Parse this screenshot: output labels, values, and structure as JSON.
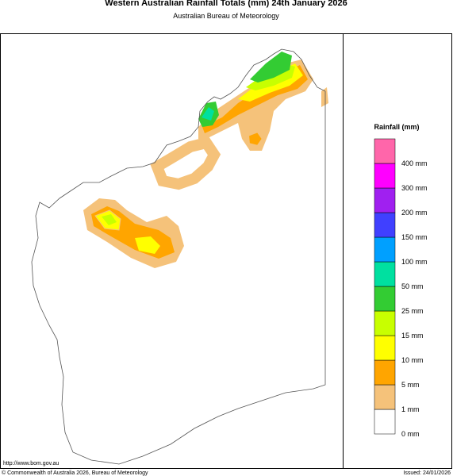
{
  "header": {
    "title": "Western Australian Rainfall Totals (mm) 24th January 2026",
    "subtitle": "Australian Bureau of Meteorology"
  },
  "legend": {
    "title": "Rainfall (mm)",
    "items": [
      {
        "label": "0 mm",
        "color": "#ffffff"
      },
      {
        "label": "1 mm",
        "color": "#f5c27a"
      },
      {
        "label": "5 mm",
        "color": "#ffa500"
      },
      {
        "label": "10 mm",
        "color": "#ffff00"
      },
      {
        "label": "15 mm",
        "color": "#c8ff00"
      },
      {
        "label": "25 mm",
        "color": "#33cc33"
      },
      {
        "label": "50 mm",
        "color": "#00e0a0"
      },
      {
        "label": "100 mm",
        "color": "#00a0ff"
      },
      {
        "label": "150 mm",
        "color": "#4040ff"
      },
      {
        "label": "200 mm",
        "color": "#a020f0"
      },
      {
        "label": "300 mm",
        "color": "#ff00ff"
      },
      {
        "label": "400 mm",
        "color": "#ff66aa"
      }
    ]
  },
  "footer": {
    "url": "http://www.bom.gov.au",
    "copyright": "© Commonwealth of Australia 2026, Bureau of Meteorology",
    "issued": "Issued: 24/01/2026"
  }
}
